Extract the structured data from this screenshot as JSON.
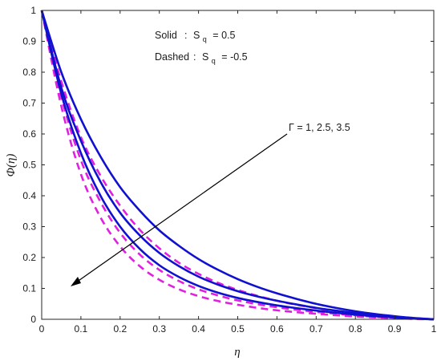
{
  "chart_data": {
    "type": "line",
    "title": "",
    "xlabel": "η",
    "ylabel": "Φ(η)",
    "xlim": [
      0,
      1
    ],
    "ylim": [
      0,
      1
    ],
    "xticks": [
      "0",
      "0.1",
      "0.2",
      "0.3",
      "0.4",
      "0.5",
      "0.6",
      "0.7",
      "0.8",
      "0.9",
      "1"
    ],
    "yticks": [
      "0",
      "0.1",
      "0.2",
      "0.3",
      "0.4",
      "0.5",
      "0.6",
      "0.7",
      "0.8",
      "0.9",
      "1"
    ],
    "grid": false,
    "x": [
      0,
      0.05,
      0.1,
      0.15,
      0.2,
      0.25,
      0.3,
      0.35,
      0.4,
      0.45,
      0.5,
      0.55,
      0.6,
      0.65,
      0.7,
      0.75,
      0.8,
      0.85,
      0.9,
      0.95,
      1
    ],
    "series": [
      {
        "group": "solid",
        "style": "solid",
        "color": "#1010d0",
        "values": [
          1,
          0.8,
          0.648,
          0.527,
          0.428,
          0.352,
          0.288,
          0.238,
          0.195,
          0.16,
          0.13,
          0.105,
          0.084,
          0.066,
          0.05,
          0.037,
          0.026,
          0.017,
          0.01,
          0.004,
          0
        ]
      },
      {
        "group": "solid",
        "style": "solid",
        "color": "#1010d0",
        "values": [
          1,
          0.75,
          0.578,
          0.445,
          0.345,
          0.272,
          0.215,
          0.172,
          0.138,
          0.112,
          0.091,
          0.074,
          0.06,
          0.048,
          0.037,
          0.028,
          0.02,
          0.013,
          0.008,
          0.003,
          0
        ]
      },
      {
        "group": "solid",
        "style": "solid",
        "color": "#1010d0",
        "values": [
          1,
          0.73,
          0.538,
          0.4,
          0.3,
          0.228,
          0.175,
          0.137,
          0.108,
          0.086,
          0.069,
          0.056,
          0.045,
          0.036,
          0.028,
          0.021,
          0.015,
          0.01,
          0.006,
          0.002,
          0
        ]
      },
      {
        "group": "dashed",
        "style": "dashed",
        "color": "#e020e0",
        "values": [
          1,
          0.77,
          0.59,
          0.465,
          0.368,
          0.29,
          0.23,
          0.183,
          0.147,
          0.118,
          0.095,
          0.076,
          0.06,
          0.047,
          0.036,
          0.026,
          0.018,
          0.012,
          0.007,
          0.003,
          0
        ]
      },
      {
        "group": "dashed",
        "style": "dashed",
        "color": "#e020e0",
        "values": [
          1,
          0.72,
          0.515,
          0.38,
          0.28,
          0.21,
          0.16,
          0.124,
          0.097,
          0.077,
          0.061,
          0.049,
          0.039,
          0.031,
          0.024,
          0.018,
          0.013,
          0.008,
          0.005,
          0.002,
          0
        ]
      },
      {
        "group": "dashed",
        "style": "dashed",
        "color": "#e020e0",
        "values": [
          1,
          0.69,
          0.47,
          0.33,
          0.236,
          0.172,
          0.128,
          0.097,
          0.075,
          0.059,
          0.047,
          0.037,
          0.029,
          0.023,
          0.018,
          0.013,
          0.009,
          0.006,
          0.004,
          0.001,
          0
        ]
      }
    ],
    "annotations": {
      "solid_label": "Solid",
      "solid_sep": ":",
      "solid_symbol": "S",
      "solid_sub": "q",
      "solid_value": "= 0.5",
      "dashed_label": "Dashed",
      "dashed_sep": ":",
      "dashed_symbol": "S",
      "dashed_sub": "q",
      "dashed_value": "= -0.5",
      "arrow_text": "Γ = 1, 2.5, 3.5",
      "arrow_direction": "increasing Γ toward lower-left"
    }
  }
}
